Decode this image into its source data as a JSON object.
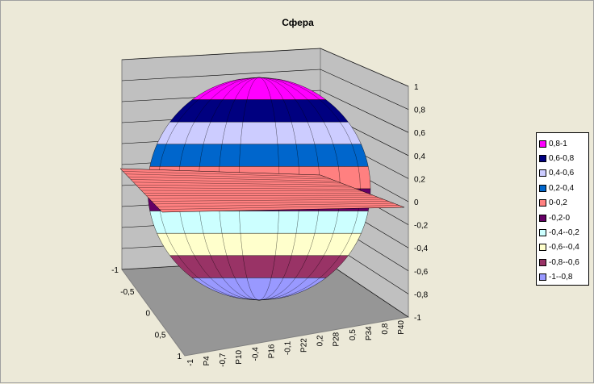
{
  "chart_data": {
    "type": "surface",
    "title": "Сфера",
    "z_ticks": [
      "-1",
      "-0,8",
      "-0,6",
      "-0,4",
      "-0,2",
      "0",
      "0,2",
      "0,4",
      "0,6",
      "0,8",
      "1"
    ],
    "depth_ticks": [
      "-1",
      "-0,5",
      "0",
      "0,5",
      "1"
    ],
    "x_ticks": [
      "-1",
      "P4",
      "-0,7",
      "P10",
      "-0,4",
      "P16",
      "-0,1",
      "P22",
      "0,2",
      "P28",
      "0,5",
      "P34",
      "0,8",
      "P40"
    ],
    "zlim": [
      -1,
      1
    ],
    "grid": true,
    "legend_position": "right",
    "legend": [
      {
        "label": "0,8-1",
        "color": "#ff00ff"
      },
      {
        "label": "0,6-0,8",
        "color": "#000080"
      },
      {
        "label": "0,4-0,6",
        "color": "#ccccff"
      },
      {
        "label": "0,2-0,4",
        "color": "#0066cc"
      },
      {
        "label": "0-0,2",
        "color": "#ff8080"
      },
      {
        "label": "-0,2-0",
        "color": "#660066"
      },
      {
        "label": "-0,4--0,2",
        "color": "#ccffff"
      },
      {
        "label": "-0,6--0,4",
        "color": "#ffffcc"
      },
      {
        "label": "-0,8--0,6",
        "color": "#993366"
      },
      {
        "label": "-1--0,8",
        "color": "#9999ff"
      }
    ]
  }
}
